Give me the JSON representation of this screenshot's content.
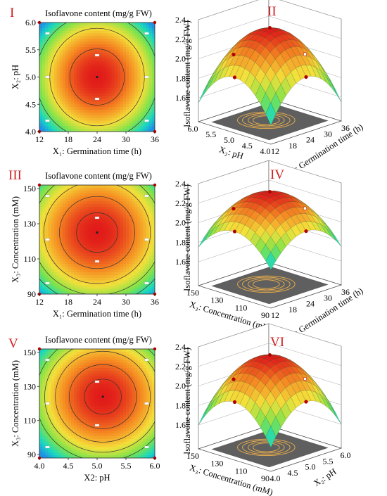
{
  "colors": {
    "low": "#1f8fe6",
    "mid_low": "#19d9c0",
    "mid": "#7fe34a",
    "mid_high": "#f4e03a",
    "high_orange": "#f58a22",
    "peak": "#e11a1a",
    "floor": "#5f5f5f",
    "floor_contour": "#f0b24a",
    "contour_line": "#333333",
    "design_point": "#b30000"
  },
  "chart_data": [
    {
      "id": "I",
      "panel_label": "I",
      "type": "heatmap",
      "subtype": "contour",
      "title": "Isoflavone content (mg/g FW)",
      "xlabel": "X₁: Germination time (h)",
      "ylabel": "X₂: pH",
      "x_ticks": [
        "12",
        "18",
        "24",
        "30",
        "36"
      ],
      "y_ticks": [
        "4.0",
        "4.5",
        "5.0",
        "5.5",
        "6.0"
      ],
      "xlim": [
        12,
        36
      ],
      "ylim": [
        4.0,
        6.0
      ],
      "optimum": {
        "x": 24,
        "y": 5.0,
        "value": 2.3
      },
      "value_range": [
        1.55,
        2.3
      ],
      "contour_levels": [
        1.8,
        2.0,
        2.2
      ],
      "spread": {
        "x": 11,
        "y": 1.0
      }
    },
    {
      "id": "II",
      "panel_label": "II",
      "type": "surface",
      "zlabel": "Isoflavone content (mg/g FW)",
      "xlabel": "X₁: Germination time (h)",
      "ylabel": "X₂: pH",
      "z_ticks": [
        "1.6",
        "1.8",
        "2.0",
        "2.2",
        "2.4"
      ],
      "zlim": [
        1.5,
        2.4
      ],
      "x_ticks": [
        "12",
        "18",
        "24",
        "30",
        "36"
      ],
      "y_ticks": [
        "6.0",
        "5.5",
        "5.0",
        "4.5",
        "4.0"
      ],
      "xlim": [
        12,
        36
      ],
      "ylim": [
        4.0,
        6.0
      ],
      "optimum": {
        "x": 24,
        "y": 5.0,
        "value": 2.3
      },
      "corner_value": 1.55
    },
    {
      "id": "III",
      "panel_label": "III",
      "type": "heatmap",
      "subtype": "contour",
      "title": "Isoflavone content  (mg/g FW)",
      "xlabel": "X₁: Germination time (h)",
      "ylabel": "X₃: Concentration  (mM)",
      "x_ticks": [
        "12",
        "18",
        "24",
        "30",
        "36"
      ],
      "y_ticks": [
        "90",
        "110",
        "130",
        "150"
      ],
      "xlim": [
        12,
        36
      ],
      "ylim": [
        90,
        152
      ],
      "optimum": {
        "x": 24,
        "y": 125,
        "value": 2.3
      },
      "value_range": [
        1.75,
        2.3
      ],
      "contour_levels": [
        1.9,
        2.0,
        2.1,
        2.2,
        2.27
      ],
      "spread": {
        "x": 13,
        "y": 34
      }
    },
    {
      "id": "IV",
      "panel_label": "IV",
      "type": "surface",
      "zlabel": "Isoflavone content (mg/g FW)",
      "xlabel": "X₁: Germination time (h)",
      "ylabel": "X₃: Concentration (mM)",
      "z_ticks": [
        "1.6",
        "1.8",
        "2.0",
        "2.2",
        "2.4"
      ],
      "zlim": [
        1.5,
        2.4
      ],
      "x_ticks": [
        "12",
        "18",
        "24",
        "30",
        "36"
      ],
      "y_ticks": [
        "150",
        "130",
        "110",
        "90"
      ],
      "xlim": [
        12,
        36
      ],
      "ylim": [
        90,
        150
      ],
      "optimum": {
        "x": 24,
        "y": 125,
        "value": 2.3
      },
      "corner_value": 1.75
    },
    {
      "id": "V",
      "panel_label": "V",
      "type": "heatmap",
      "subtype": "contour",
      "title": "Isoflavone content (mg/g FW)",
      "xlabel": "X2: pH",
      "ylabel": "X₃: Concentration  (mM)",
      "x_ticks": [
        "4.0",
        "4.5",
        "5.0",
        "5.5",
        "6.0"
      ],
      "y_ticks": [
        "90",
        "110",
        "130",
        "150"
      ],
      "xlim": [
        4.0,
        6.0
      ],
      "ylim": [
        88,
        152
      ],
      "optimum": {
        "x": 5.1,
        "y": 124,
        "value": 2.3
      },
      "value_range": [
        1.65,
        2.3
      ],
      "contour_levels": [
        1.9,
        2.0,
        2.1,
        2.2,
        2.27
      ],
      "spread": {
        "x": 1.05,
        "y": 34
      }
    },
    {
      "id": "VI",
      "panel_label": "VI",
      "type": "surface",
      "zlabel": "Isoflavone content (mg/g FW)",
      "xlabel": "X₂: pH",
      "ylabel": "X₃: Concentration (mM)",
      "z_ticks": [
        "1.6",
        "1.8",
        "2.0",
        "2.2",
        "2.4"
      ],
      "zlim": [
        1.5,
        2.4
      ],
      "x_ticks": [
        "4.0",
        "4.5",
        "5.0",
        "5.5",
        "6.0"
      ],
      "y_ticks": [
        "150",
        "130",
        "110",
        "90"
      ],
      "xlim": [
        4.0,
        6.0
      ],
      "ylim": [
        90,
        150
      ],
      "optimum": {
        "x": 5.1,
        "y": 124,
        "value": 2.3
      },
      "corner_value": 1.6
    }
  ]
}
